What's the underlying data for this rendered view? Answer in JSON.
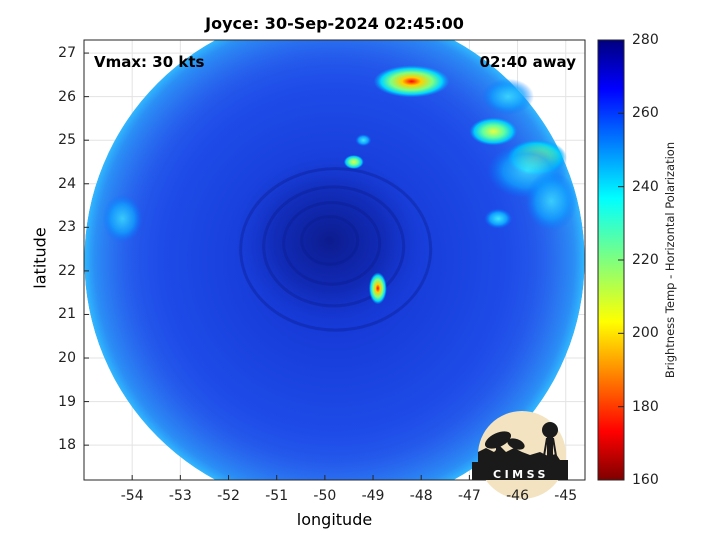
{
  "title": "Joyce: 30-Sep-2024 02:45:00",
  "vmax_text": "Vmax: 30 kts",
  "away_text": "02:40 away",
  "xlabel": "longitude",
  "ylabel": "latitude",
  "colorbar_label": "Brightness Temp - Horizontal Polarization",
  "logo_text": "CIMSS",
  "chart_data": {
    "type": "heatmap",
    "xlim": [
      -55,
      -44.6
    ],
    "ylim": [
      17.2,
      27.3
    ],
    "xticks": [
      "-54",
      "-53",
      "-52",
      "-51",
      "-50",
      "-49",
      "-48",
      "-47",
      "-46",
      "-45"
    ],
    "yticks": [
      "27",
      "26",
      "25",
      "24",
      "23",
      "22",
      "21",
      "20",
      "19",
      "18"
    ],
    "xtick_values": [
      -54,
      -53,
      -52,
      -51,
      -50,
      -49,
      -48,
      -47,
      -46,
      -45
    ],
    "ytick_values": [
      27,
      26,
      25,
      24,
      23,
      22,
      21,
      20,
      19,
      18
    ],
    "grid": true,
    "swath_center": {
      "lon": -49.8,
      "lat": 22.25
    },
    "storm_center": {
      "lon": -49.9,
      "lat": 22.7
    },
    "colorbar": {
      "min": 160,
      "max": 280,
      "ticks": [
        "280",
        "260",
        "240",
        "220",
        "200",
        "180",
        "160"
      ],
      "tick_values": [
        280,
        260,
        240,
        220,
        200,
        180,
        160
      ],
      "colormap": "jet"
    },
    "features": [
      {
        "name": "convection-north",
        "lon": -48.2,
        "lat": 26.35,
        "min_tb": 165
      },
      {
        "name": "convection-northeast",
        "lon": -46.5,
        "lat": 25.2,
        "min_tb": 225
      },
      {
        "name": "convection-east",
        "lon": -45.6,
        "lat": 24.6,
        "min_tb": 215
      },
      {
        "name": "cell-west",
        "lon": -49.4,
        "lat": 24.5,
        "min_tb": 215
      },
      {
        "name": "cell-north-small",
        "lon": -49.2,
        "lat": 25.0,
        "min_tb": 235
      },
      {
        "name": "band-south-of-eye",
        "lon": -48.9,
        "lat": 21.6,
        "min_tb": 190
      },
      {
        "name": "spot-east",
        "lon": -46.4,
        "lat": 23.2,
        "min_tb": 240
      }
    ]
  }
}
